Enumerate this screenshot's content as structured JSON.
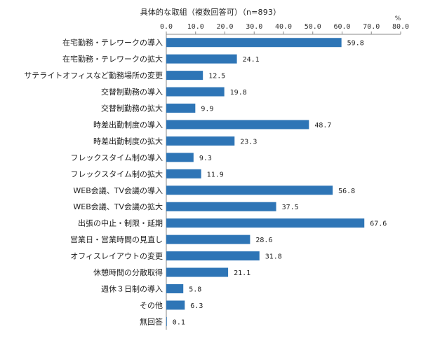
{
  "chart_data": {
    "type": "bar",
    "orientation": "horizontal",
    "title": "具体的な取組（複数回答可）（n=893）",
    "unit": "%",
    "xlim": [
      0,
      80
    ],
    "ticks": [
      "0.0",
      "10.0",
      "20.0",
      "30.0",
      "40.0",
      "50.0",
      "60.0",
      "70.0",
      "80.0"
    ],
    "tick_values": [
      0,
      10,
      20,
      30,
      40,
      50,
      60,
      70,
      80
    ],
    "axis_position": "top",
    "grid": false,
    "bar_color": "#2e75b6",
    "categories": [
      "在宅勤務・テレワークの導入",
      "在宅勤務・テレワークの拡大",
      "サテライトオフィスなど勤務場所の変更",
      "交替制勤務の導入",
      "交替制勤務の拡大",
      "時差出勤制度の導入",
      "時差出勤制度の拡大",
      "フレックスタイム制の導入",
      "フレックスタイム制の拡大",
      "WEB会議、TV会議の導入",
      "WEB会議、TV会議の拡大",
      "出張の中止・制限・延期",
      "営業日・営業時間の見直し",
      "オフィスレイアウトの変更",
      "休憩時間の分散取得",
      "週休３日制の導入",
      "その他",
      "無回答"
    ],
    "values": [
      59.8,
      24.1,
      12.5,
      19.8,
      9.9,
      48.7,
      23.3,
      9.3,
      11.9,
      56.8,
      37.5,
      67.6,
      28.6,
      31.8,
      21.1,
      5.8,
      6.3,
      0.1
    ],
    "value_labels": [
      "59.8",
      "24.1",
      "12.5",
      "19.8",
      "9.9",
      "48.7",
      "23.3",
      "9.3",
      "11.9",
      "56.8",
      "37.5",
      "67.6",
      "28.6",
      "31.8",
      "21.1",
      "5.8",
      "6.3",
      "0.1"
    ]
  }
}
